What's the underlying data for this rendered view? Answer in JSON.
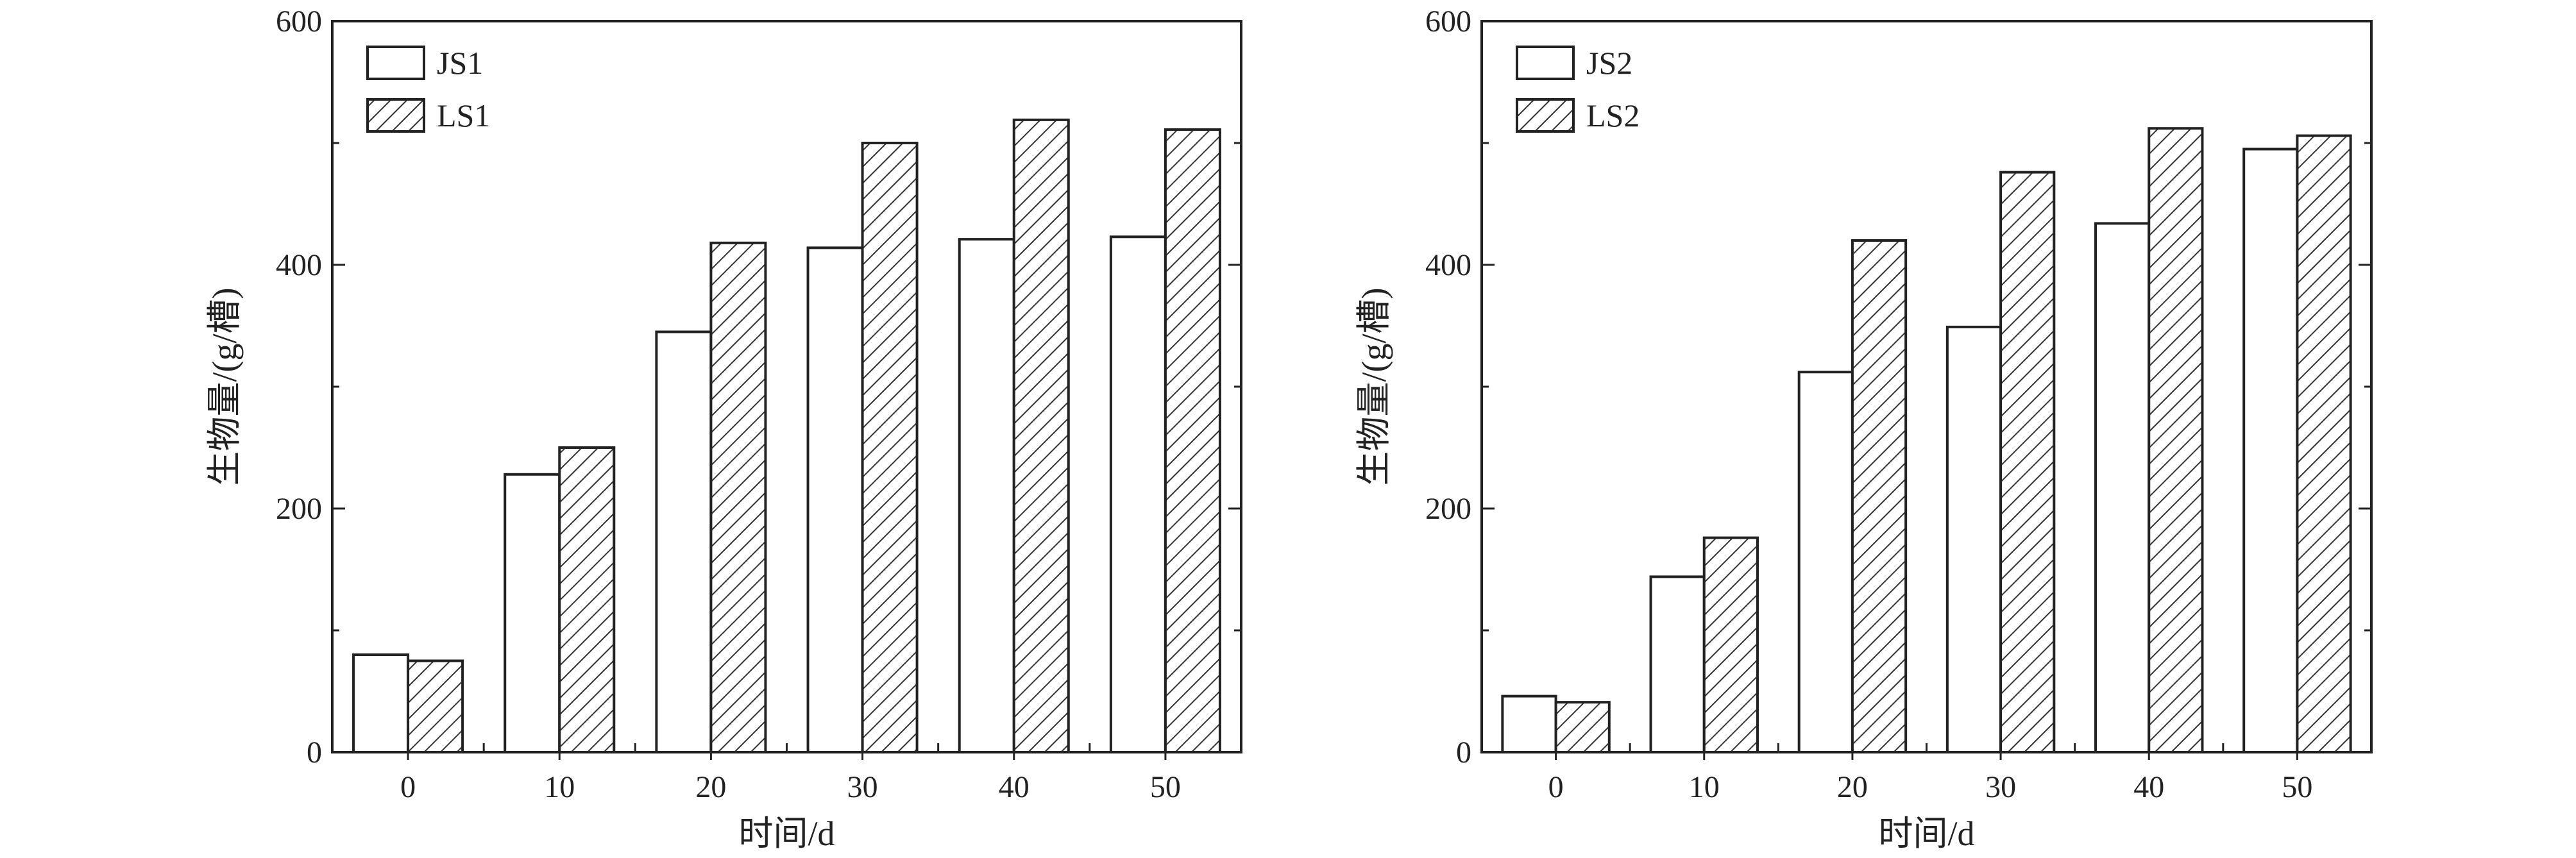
{
  "chart_data": [
    {
      "type": "bar",
      "categories": [
        "0",
        "10",
        "20",
        "30",
        "40",
        "50"
      ],
      "series": [
        {
          "name": "JS1",
          "values": [
            80,
            228,
            345,
            414,
            421,
            423
          ],
          "pattern": "none"
        },
        {
          "name": "LS1",
          "values": [
            75,
            250,
            418,
            500,
            519,
            511
          ],
          "pattern": "hatch"
        }
      ],
      "xlabel": "时间/d",
      "ylabel": "生物量/(g/槽)",
      "ylim": [
        0,
        600
      ],
      "yticks": [
        "0",
        "200",
        "400",
        "600"
      ],
      "legend": "top-left",
      "grid": false
    },
    {
      "type": "bar",
      "categories": [
        "0",
        "10",
        "20",
        "30",
        "40",
        "50"
      ],
      "series": [
        {
          "name": "JS2",
          "values": [
            46,
            144,
            312,
            349,
            434,
            495
          ],
          "pattern": "none"
        },
        {
          "name": "LS2",
          "values": [
            41,
            176,
            420,
            476,
            512,
            506
          ],
          "pattern": "hatch"
        }
      ],
      "xlabel": "时间/d",
      "ylabel": "生物量/(g/槽)",
      "ylim": [
        0,
        600
      ],
      "yticks": [
        "0",
        "200",
        "400",
        "600"
      ],
      "legend": "top-left",
      "grid": false
    }
  ],
  "colors": {
    "stroke": "#222222",
    "fill": "#ffffff",
    "background": "#ffffff"
  }
}
